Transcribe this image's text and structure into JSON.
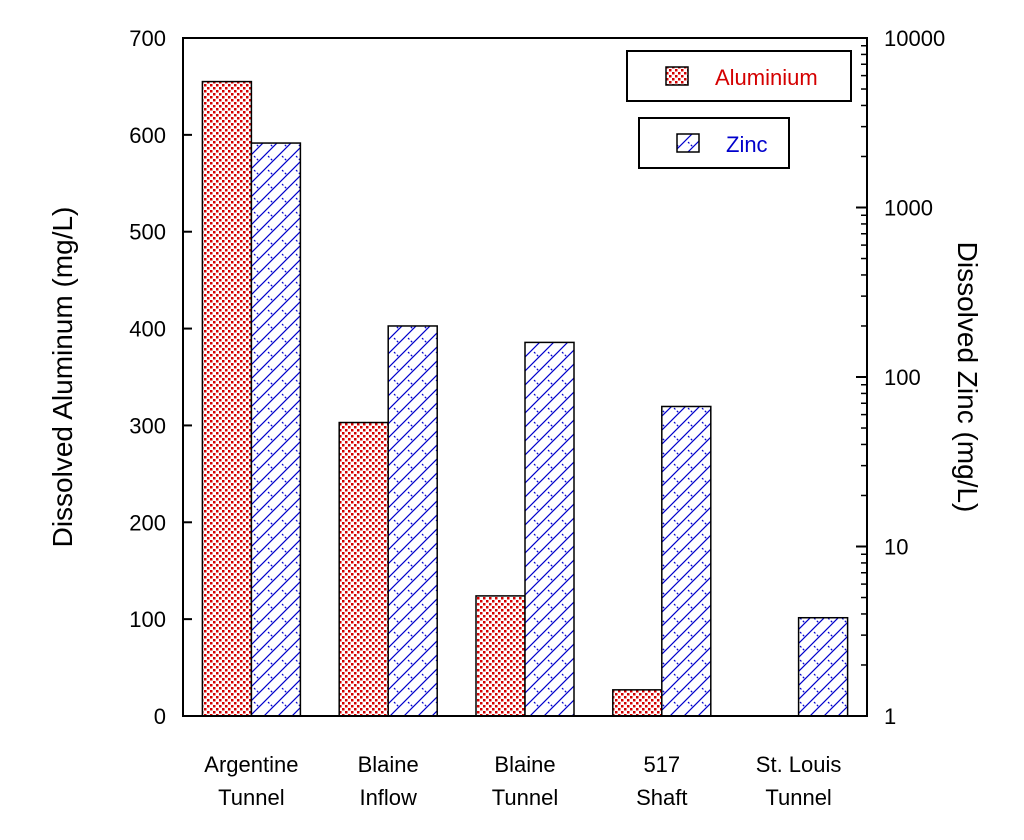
{
  "chart_data": {
    "type": "bar",
    "categories": [
      [
        "Argentine",
        "Tunnel"
      ],
      [
        "Blaine",
        "Inflow"
      ],
      [
        "Blaine",
        "Tunnel"
      ],
      [
        "517",
        "Shaft"
      ],
      [
        "St. Louis",
        "Tunnel"
      ]
    ],
    "series": [
      {
        "name": "Aluminium",
        "axis": "left",
        "color": "#d40000",
        "pattern": "dots",
        "values": [
          655,
          303,
          124,
          27,
          null
        ]
      },
      {
        "name": "Zinc",
        "axis": "right",
        "color": "#0000cc",
        "pattern": "crosshatch",
        "values": [
          2400,
          200,
          160,
          67,
          3.8
        ]
      }
    ],
    "ylabel": "Dissolved Aluminum (mg/L)",
    "ylabel_right": "Dissolved Zinc (mg/L)",
    "ylim": [
      0,
      700
    ],
    "yticks": [
      "0",
      "100",
      "200",
      "300",
      "400",
      "500",
      "600",
      "700"
    ],
    "ylim_right": [
      1,
      10000
    ],
    "yscale_right": "log",
    "yticks_right": [
      "1",
      "10",
      "100",
      "1000",
      "10000"
    ],
    "grid": false,
    "legend_placement": "top-right"
  }
}
